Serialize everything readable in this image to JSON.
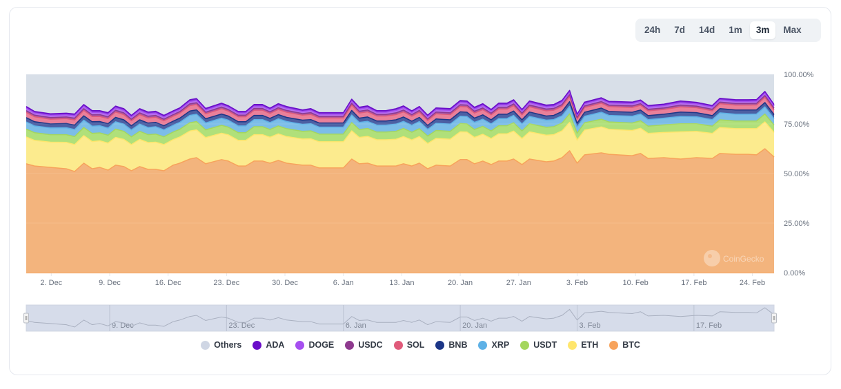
{
  "range_selector": {
    "buttons": [
      "24h",
      "7d",
      "14d",
      "1m",
      "3m",
      "Max"
    ],
    "active": "3m"
  },
  "watermark": "CoinGecko",
  "chart_data": {
    "type": "area",
    "stacking": "percent",
    "title": "",
    "xlabel": "",
    "ylabel": "",
    "ylim": [
      0,
      100
    ],
    "y_ticks": [
      "0.00%",
      "25.00%",
      "50.00%",
      "75.00%",
      "100.00%"
    ],
    "y_tick_values": [
      0,
      25,
      50,
      75,
      100
    ],
    "x_start": "29. Nov",
    "x_unit": "days since start",
    "x_range_days": [
      0,
      89.6
    ],
    "x_ticks": [
      {
        "label": "2. Dec",
        "day": 3
      },
      {
        "label": "9. Dec",
        "day": 10
      },
      {
        "label": "16. Dec",
        "day": 17
      },
      {
        "label": "23. Dec",
        "day": 24
      },
      {
        "label": "30. Dec",
        "day": 31
      },
      {
        "label": "6. Jan",
        "day": 38
      },
      {
        "label": "13. Jan",
        "day": 45
      },
      {
        "label": "20. Jan",
        "day": 52
      },
      {
        "label": "27. Jan",
        "day": 59
      },
      {
        "label": "3. Feb",
        "day": 66
      },
      {
        "label": "10. Feb",
        "day": 73
      },
      {
        "label": "17. Feb",
        "day": 80
      },
      {
        "label": "24. Feb",
        "day": 87
      }
    ],
    "navigator_ticks": [
      {
        "label": "9. Dec",
        "day": 10
      },
      {
        "label": "23. Dec",
        "day": 24
      },
      {
        "label": "6. Jan",
        "day": 38
      },
      {
        "label": "20. Jan",
        "day": 52
      },
      {
        "label": "3. Feb",
        "day": 66
      },
      {
        "label": "17. Feb",
        "day": 80
      }
    ],
    "grid": true,
    "legend_position": "bottom-center",
    "x": [
      0,
      1.0,
      2.9,
      4.8,
      5.8,
      6.9,
      7.9,
      8.8,
      9.8,
      10.7,
      11.7,
      12.6,
      13.6,
      14.6,
      15.5,
      16.5,
      17.6,
      18.4,
      19.6,
      20.4,
      21.5,
      23.4,
      24.2,
      25.4,
      26.3,
      27.3,
      28.3,
      29.2,
      30.2,
      31.2,
      33.1,
      34.1,
      35.1,
      38.0,
      39.0,
      39.9,
      40.9,
      42.0,
      43.1,
      44.3,
      45.2,
      46.2,
      47.1,
      48.1,
      49.1,
      50.8,
      52.0,
      52.8,
      53.7,
      54.7,
      55.7,
      56.6,
      57.6,
      58.4,
      59.4,
      60.3,
      62.3,
      63.2,
      64.2,
      65.1,
      66.0,
      66.9,
      68.9,
      69.8,
      72.6,
      73.6,
      74.5,
      76.4,
      78.4,
      80.3,
      82.2,
      83.1,
      85.0,
      86.5,
      87.5,
      88.5,
      89.6
    ],
    "series": [
      {
        "name": "BTC",
        "color": "#f7a35c",
        "fill": "#f3b47d",
        "values": [
          54.9,
          53.8,
          53.1,
          52.4,
          51.0,
          55.2,
          52.4,
          53.1,
          51.7,
          54.2,
          53.5,
          51.4,
          53.5,
          52.1,
          52.1,
          51.4,
          54.2,
          55.2,
          57.3,
          58.0,
          54.9,
          57.0,
          56.3,
          53.8,
          53.8,
          56.3,
          56.3,
          55.2,
          56.6,
          55.2,
          54.2,
          54.2,
          52.8,
          52.8,
          57.3,
          54.9,
          55.2,
          53.8,
          53.8,
          53.8,
          54.9,
          53.8,
          55.2,
          52.4,
          54.2,
          53.8,
          57.0,
          57.0,
          54.9,
          56.3,
          54.5,
          56.3,
          56.3,
          57.3,
          54.5,
          57.3,
          55.9,
          56.3,
          58.0,
          61.5,
          55.2,
          59.4,
          60.4,
          59.7,
          59.0,
          60.1,
          57.6,
          58.0,
          57.3,
          58.0,
          57.6,
          60.1,
          59.7,
          59.7,
          59.4,
          62.5,
          58.3
        ]
      },
      {
        "name": "ETH",
        "color": "#ffe66d",
        "fill": "#fceb8e",
        "values": [
          13.5,
          12.9,
          12.7,
          13.3,
          13.6,
          13.9,
          13.7,
          13.4,
          13.6,
          14.0,
          13.7,
          13.2,
          13.7,
          13.5,
          13.7,
          13.2,
          12.9,
          13.2,
          14.1,
          14.0,
          13.2,
          13.3,
          13.2,
          12.9,
          12.9,
          13.3,
          13.3,
          13.1,
          13.4,
          13.4,
          13.2,
          13.3,
          13.2,
          13.2,
          14.2,
          13.3,
          13.5,
          13.2,
          13.2,
          13.5,
          13.7,
          13.1,
          13.4,
          12.7,
          13.5,
          13.5,
          14.0,
          13.9,
          13.3,
          13.5,
          13.1,
          13.7,
          13.7,
          14.1,
          13.1,
          13.7,
          13.4,
          13.3,
          13.5,
          14.3,
          11.6,
          12.5,
          13.1,
          12.6,
          12.7,
          12.7,
          12.6,
          12.7,
          13.7,
          13.2,
          12.6,
          13.1,
          12.9,
          12.9,
          13.2,
          13.5,
          12.4
        ]
      },
      {
        "name": "USDT",
        "color": "#a4d65e",
        "fill": "#b0e07a",
        "values": [
          4.0,
          3.9,
          3.8,
          3.9,
          4.0,
          4.1,
          4.1,
          4.0,
          4.0,
          4.2,
          4.1,
          3.9,
          4.1,
          4.0,
          4.1,
          3.9,
          3.8,
          3.9,
          4.2,
          4.2,
          3.9,
          4.0,
          3.9,
          3.9,
          3.9,
          4.0,
          4.0,
          3.9,
          4.0,
          4.0,
          3.9,
          4.0,
          3.9,
          3.9,
          4.2,
          4.0,
          4.0,
          3.9,
          3.9,
          4.0,
          4.1,
          3.9,
          4.0,
          3.8,
          4.0,
          4.0,
          4.2,
          4.1,
          4.0,
          4.0,
          3.9,
          4.1,
          4.1,
          4.2,
          3.9,
          4.1,
          4.0,
          4.0,
          4.0,
          4.3,
          3.5,
          3.7,
          3.9,
          3.7,
          3.8,
          3.8,
          3.7,
          3.8,
          4.1,
          3.9,
          3.7,
          3.9,
          3.9,
          3.9,
          3.9,
          4.0,
          3.7
        ]
      },
      {
        "name": "XRP",
        "color": "#5eb1e6",
        "fill": "#7cbde8",
        "values": [
          3.6,
          3.4,
          3.4,
          3.5,
          3.6,
          3.7,
          3.7,
          3.6,
          3.6,
          3.7,
          3.6,
          3.5,
          3.6,
          3.6,
          3.7,
          3.5,
          3.4,
          3.5,
          3.7,
          3.7,
          3.5,
          3.6,
          3.5,
          3.4,
          3.4,
          3.6,
          3.6,
          3.5,
          3.6,
          3.6,
          3.5,
          3.6,
          3.5,
          3.5,
          3.8,
          3.6,
          3.6,
          3.5,
          3.5,
          3.6,
          3.6,
          3.5,
          3.6,
          3.4,
          3.6,
          3.6,
          3.7,
          3.7,
          3.6,
          3.6,
          3.5,
          3.6,
          3.6,
          3.7,
          3.5,
          3.7,
          3.6,
          3.6,
          3.6,
          3.8,
          3.1,
          3.3,
          3.5,
          3.3,
          3.4,
          3.4,
          3.3,
          3.4,
          3.7,
          3.5,
          3.3,
          3.5,
          3.4,
          3.4,
          3.5,
          3.6,
          3.3
        ]
      },
      {
        "name": "BNB",
        "color": "#1c3687",
        "fill": "#4c5fa3",
        "values": [
          2.2,
          2.1,
          2.0,
          2.1,
          2.2,
          2.2,
          2.2,
          2.1,
          2.2,
          2.2,
          2.2,
          2.1,
          2.2,
          2.2,
          2.2,
          2.1,
          2.1,
          2.1,
          2.2,
          2.2,
          2.1,
          2.1,
          2.1,
          2.1,
          2.1,
          2.1,
          2.1,
          2.1,
          2.1,
          2.1,
          2.1,
          2.1,
          2.1,
          2.1,
          2.3,
          2.1,
          2.2,
          2.1,
          2.1,
          2.2,
          2.2,
          2.1,
          2.1,
          2.0,
          2.2,
          2.2,
          2.2,
          2.2,
          2.1,
          2.2,
          2.1,
          2.2,
          2.2,
          2.2,
          2.1,
          2.2,
          2.1,
          2.1,
          2.2,
          2.3,
          1.9,
          2.0,
          2.1,
          2.0,
          2.0,
          2.0,
          2.0,
          2.0,
          2.2,
          2.1,
          2.0,
          2.1,
          2.1,
          2.1,
          2.1,
          2.2,
          2.0
        ]
      },
      {
        "name": "SOL",
        "color": "#e05a7a",
        "fill": "#e9809a",
        "values": [
          2.6,
          2.5,
          2.4,
          2.5,
          2.6,
          2.7,
          2.6,
          2.6,
          2.6,
          2.7,
          2.6,
          2.5,
          2.6,
          2.6,
          2.6,
          2.5,
          2.5,
          2.5,
          2.7,
          2.7,
          2.5,
          2.6,
          2.5,
          2.5,
          2.5,
          2.6,
          2.6,
          2.5,
          2.6,
          2.6,
          2.5,
          2.6,
          2.5,
          2.5,
          2.7,
          2.6,
          2.6,
          2.5,
          2.5,
          2.6,
          2.6,
          2.5,
          2.6,
          2.4,
          2.6,
          2.6,
          2.7,
          2.7,
          2.6,
          2.6,
          2.5,
          2.6,
          2.6,
          2.7,
          2.5,
          2.6,
          2.6,
          2.6,
          2.6,
          2.7,
          2.2,
          2.4,
          2.5,
          2.4,
          2.4,
          2.4,
          2.4,
          2.4,
          2.6,
          2.5,
          2.4,
          2.5,
          2.5,
          2.5,
          2.5,
          2.6,
          2.4
        ]
      },
      {
        "name": "USDC",
        "color": "#8e3a8e",
        "fill": "#a05aa8",
        "values": [
          0.9,
          0.8,
          0.8,
          0.8,
          0.9,
          0.9,
          0.9,
          0.9,
          0.9,
          0.9,
          0.9,
          0.8,
          0.9,
          0.9,
          0.9,
          0.8,
          0.8,
          0.8,
          0.9,
          0.9,
          0.8,
          0.9,
          0.8,
          0.8,
          0.8,
          0.9,
          0.9,
          0.8,
          0.9,
          0.9,
          0.8,
          0.9,
          0.8,
          0.8,
          0.9,
          0.9,
          0.9,
          0.8,
          0.8,
          0.9,
          0.9,
          0.8,
          0.9,
          0.8,
          0.9,
          0.9,
          0.9,
          0.9,
          0.9,
          0.9,
          0.8,
          0.9,
          0.9,
          0.9,
          0.8,
          0.9,
          0.9,
          0.9,
          0.9,
          0.9,
          0.7,
          0.8,
          0.8,
          0.8,
          0.8,
          0.8,
          0.8,
          0.8,
          0.9,
          0.8,
          0.8,
          0.8,
          0.8,
          0.8,
          0.8,
          0.9,
          0.8
        ]
      },
      {
        "name": "DOGE",
        "color": "#a64ff0",
        "fill": "#b672ef",
        "values": [
          1.2,
          1.1,
          1.1,
          1.1,
          1.2,
          1.2,
          1.2,
          1.1,
          1.2,
          1.2,
          1.2,
          1.1,
          1.2,
          1.2,
          1.2,
          1.1,
          1.1,
          1.1,
          1.2,
          1.2,
          1.1,
          1.1,
          1.1,
          1.1,
          1.1,
          1.1,
          1.1,
          1.1,
          1.1,
          1.1,
          1.1,
          1.1,
          1.1,
          1.1,
          1.2,
          1.1,
          1.2,
          1.1,
          1.1,
          1.2,
          1.2,
          1.1,
          1.1,
          1.1,
          1.2,
          1.2,
          1.2,
          1.2,
          1.1,
          1.2,
          1.1,
          1.2,
          1.2,
          1.2,
          1.1,
          1.2,
          1.1,
          1.1,
          1.2,
          1.2,
          1.0,
          1.1,
          1.1,
          1.1,
          1.1,
          1.1,
          1.1,
          1.1,
          1.2,
          1.1,
          1.1,
          1.1,
          1.1,
          1.1,
          1.1,
          1.2,
          1.1
        ]
      },
      {
        "name": "ADA",
        "color": "#6a0dc9",
        "fill": "#7b2fd6",
        "values": [
          0.9,
          0.8,
          0.8,
          0.8,
          0.9,
          0.9,
          0.9,
          0.9,
          0.9,
          0.9,
          0.9,
          0.8,
          0.9,
          0.9,
          0.9,
          0.8,
          0.8,
          0.8,
          0.9,
          0.9,
          0.8,
          0.9,
          0.8,
          0.8,
          0.8,
          0.9,
          0.9,
          0.8,
          0.9,
          0.9,
          0.8,
          0.9,
          0.8,
          0.8,
          0.9,
          0.9,
          0.9,
          0.8,
          0.8,
          0.9,
          0.9,
          0.8,
          0.9,
          0.8,
          0.9,
          0.9,
          0.9,
          0.9,
          0.9,
          0.9,
          0.8,
          0.9,
          0.9,
          0.9,
          0.8,
          0.9,
          0.9,
          0.9,
          0.9,
          0.9,
          0.7,
          0.8,
          0.8,
          0.8,
          0.8,
          0.8,
          0.8,
          0.8,
          0.9,
          0.8,
          0.8,
          0.8,
          0.8,
          0.8,
          0.8,
          0.9,
          0.8
        ]
      },
      {
        "name": "Others",
        "color": "#cfd6e4",
        "fill": "#d8dfe8",
        "values": "remainder to 100%"
      }
    ],
    "legend_order": [
      "Others",
      "ADA",
      "DOGE",
      "USDC",
      "SOL",
      "BNB",
      "XRP",
      "USDT",
      "ETH",
      "BTC"
    ]
  }
}
